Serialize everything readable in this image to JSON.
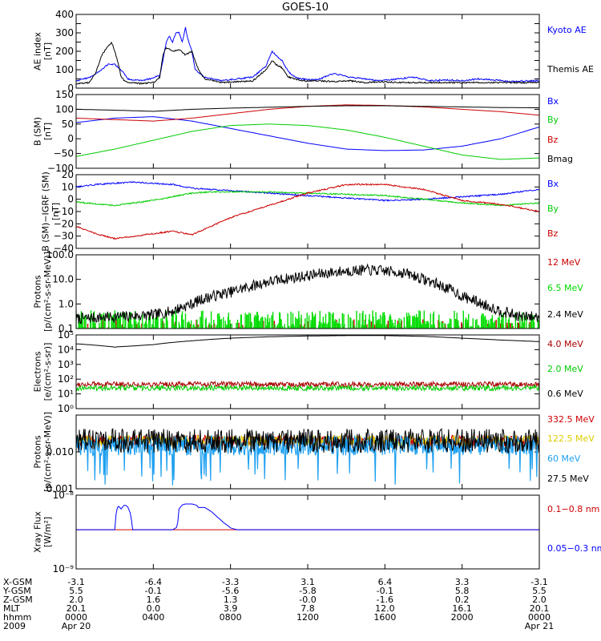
{
  "title": "GOES-10",
  "x_axis": {
    "unit": "hhmm",
    "range": [
      0,
      1440
    ],
    "tick_minutes": [
      0,
      240,
      480,
      720,
      960,
      1200,
      1440
    ],
    "row_labels": [
      "X-GSM",
      "Y-GSM",
      "Z-GSM",
      "MLT",
      "hhmm",
      "2009"
    ],
    "rows": [
      [
        "-3.1",
        "-6.4",
        "-3.3",
        "3.1",
        "6.4",
        "3.3",
        "-3.1"
      ],
      [
        "5.5",
        "-0.1",
        "-5.6",
        "-5.8",
        "-0.1",
        "5.8",
        "5.5"
      ],
      [
        "2.0",
        "1.6",
        "1.3",
        "-0.0",
        "-1.6",
        "0.2",
        "2.0"
      ],
      [
        "20.1",
        "0.0",
        "3.9",
        "7.8",
        "12.0",
        "16.1",
        "20.1"
      ],
      [
        "0000",
        "0400",
        "0800",
        "1200",
        "1600",
        "2000",
        "0000"
      ],
      [
        "Apr 20",
        "",
        "",
        "",
        "",
        "",
        "Apr 21"
      ]
    ]
  },
  "chart_data": [
    {
      "id": "ae",
      "type": "line",
      "ylabel_lines": [
        "AE index",
        "[nT]"
      ],
      "ylim": [
        0,
        400
      ],
      "yticks": [
        0,
        50,
        100,
        150,
        200,
        250,
        300,
        350,
        400
      ],
      "ytick_labels": [
        "0",
        "",
        "100",
        "",
        "200",
        "",
        "300",
        "",
        "400"
      ],
      "series": [
        {
          "name": "Kyoto AE",
          "color": "#0000ff",
          "x": [
            0,
            45,
            80,
            100,
            120,
            150,
            160,
            200,
            240,
            260,
            270,
            280,
            290,
            300,
            310,
            320,
            330,
            340,
            345,
            360,
            370,
            400,
            450,
            470,
            500,
            550,
            590,
            600,
            610,
            620,
            640,
            660,
            680,
            700,
            750,
            800,
            850,
            900,
            950,
            1000,
            1050,
            1100,
            1150,
            1200,
            1250,
            1300,
            1350,
            1400,
            1440
          ],
          "y": [
            40,
            60,
            100,
            130,
            130,
            80,
            50,
            40,
            55,
            70,
            150,
            250,
            280,
            250,
            300,
            300,
            250,
            330,
            280,
            200,
            100,
            60,
            40,
            45,
            50,
            60,
            120,
            160,
            200,
            180,
            150,
            90,
            60,
            50,
            45,
            80,
            60,
            50,
            40,
            50,
            60,
            40,
            45,
            40,
            50,
            45,
            35,
            40,
            40
          ]
        },
        {
          "name": "Themis AE",
          "color": "#000000",
          "x": [
            0,
            40,
            60,
            80,
            100,
            110,
            120,
            130,
            140,
            150,
            160,
            200,
            240,
            260,
            270,
            280,
            300,
            320,
            340,
            360,
            380,
            400,
            450,
            500,
            550,
            590,
            610,
            620,
            640,
            660,
            700,
            750,
            800,
            850,
            900,
            950,
            1000,
            1100,
            1200,
            1300,
            1400,
            1440
          ],
          "y": [
            25,
            30,
            80,
            180,
            230,
            250,
            200,
            140,
            60,
            40,
            30,
            25,
            30,
            60,
            180,
            220,
            200,
            210,
            180,
            200,
            100,
            50,
            30,
            35,
            40,
            100,
            150,
            130,
            110,
            60,
            40,
            40,
            35,
            40,
            30,
            35,
            30,
            30,
            30,
            30,
            30,
            30
          ]
        }
      ]
    },
    {
      "id": "bsm",
      "type": "line",
      "ylabel_lines": [
        "B (SM)",
        "[nT]"
      ],
      "ylim": [
        -100,
        150
      ],
      "yticks": [
        -100,
        -50,
        0,
        50,
        100,
        150
      ],
      "ytick_labels": [
        "−100",
        "−50",
        "0",
        "50",
        "100",
        "150"
      ],
      "series": [
        {
          "name": "Bx",
          "color": "#0000ff",
          "x": [
            0,
            120,
            240,
            360,
            480,
            600,
            720,
            840,
            960,
            1080,
            1200,
            1320,
            1440
          ],
          "y": [
            55,
            70,
            75,
            60,
            35,
            10,
            -15,
            -35,
            -40,
            -38,
            -25,
            0,
            40
          ]
        },
        {
          "name": "By",
          "color": "#00cc00",
          "x": [
            0,
            120,
            240,
            360,
            480,
            600,
            720,
            840,
            960,
            1080,
            1200,
            1320,
            1440
          ],
          "y": [
            -60,
            -35,
            -5,
            25,
            45,
            50,
            45,
            30,
            5,
            -25,
            -55,
            -70,
            -65
          ]
        },
        {
          "name": "Bz",
          "color": "#cc0000",
          "x": [
            0,
            120,
            240,
            360,
            480,
            600,
            720,
            840,
            960,
            1080,
            1200,
            1320,
            1440
          ],
          "y": [
            70,
            65,
            60,
            70,
            85,
            100,
            110,
            115,
            113,
            108,
            100,
            92,
            80
          ]
        },
        {
          "name": "Bmag",
          "color": "#000000",
          "x": [
            0,
            120,
            240,
            360,
            480,
            600,
            720,
            840,
            960,
            1080,
            1200,
            1320,
            1440
          ],
          "y": [
            100,
            97,
            93,
            100,
            104,
            107,
            110,
            112,
            112,
            110,
            108,
            106,
            105
          ]
        }
      ]
    },
    {
      "id": "bigrf",
      "type": "line",
      "ylabel_lines": [
        "B (SM)−IGRF (SM)",
        "[nT]"
      ],
      "ylim": [
        -40,
        20
      ],
      "yticks": [
        -40,
        -30,
        -20,
        -10,
        0,
        10,
        20
      ],
      "ytick_labels": [
        "−40",
        "−30",
        "−20",
        "−10",
        "0",
        "10",
        "20"
      ],
      "series": [
        {
          "name": "Bx",
          "color": "#0000ff",
          "x": [
            0,
            60,
            120,
            180,
            240,
            300,
            360,
            420,
            480,
            600,
            720,
            840,
            960,
            1080,
            1200,
            1320,
            1440
          ],
          "y": [
            10,
            12,
            13,
            14,
            13,
            12,
            9,
            8,
            7,
            5,
            3,
            1,
            -1,
            0,
            2,
            4,
            8
          ]
        },
        {
          "name": "By",
          "color": "#00cc00",
          "x": [
            0,
            60,
            120,
            180,
            240,
            300,
            360,
            420,
            480,
            600,
            720,
            840,
            960,
            1080,
            1200,
            1320,
            1440
          ],
          "y": [
            -2,
            -4,
            -5,
            -3,
            -1,
            2,
            5,
            6,
            6,
            6,
            5,
            4,
            3,
            0,
            -3,
            -5,
            -3
          ]
        },
        {
          "name": "Bz",
          "color": "#cc0000",
          "x": [
            0,
            60,
            120,
            180,
            240,
            300,
            360,
            420,
            480,
            600,
            720,
            840,
            960,
            1080,
            1200,
            1320,
            1440
          ],
          "y": [
            -22,
            -28,
            -32,
            -30,
            -28,
            -26,
            -29,
            -22,
            -15,
            -5,
            5,
            12,
            12,
            8,
            -1,
            -4,
            -10
          ]
        }
      ]
    },
    {
      "id": "protons1",
      "type": "line",
      "yscale": "log",
      "ylabel_lines": [
        "Protons",
        "[p/(cm²-s-sr-MeV)]"
      ],
      "ylim": [
        0.1,
        100
      ],
      "yticks": [
        0.1,
        1,
        10,
        100
      ],
      "ytick_labels": [
        "0.1",
        "1.0",
        "10.0",
        "100.0"
      ],
      "series": [
        {
          "name": "12 MeV",
          "color": "#cc0000",
          "x": [
            0,
            1440
          ],
          "y": [
            0.1,
            0.1
          ]
        },
        {
          "name": "6.5 MeV",
          "color": "#00dd00",
          "x": [
            0,
            1440
          ],
          "y": [
            0.2,
            0.2
          ]
        },
        {
          "name": "2.4 MeV",
          "color": "#000000",
          "x": [
            0,
            120,
            240,
            300,
            360,
            420,
            480,
            540,
            600,
            660,
            720,
            780,
            840,
            900,
            960,
            1020,
            1080,
            1140,
            1200,
            1260,
            1320,
            1380,
            1440
          ],
          "y": [
            0.25,
            0.3,
            0.35,
            0.5,
            1.0,
            2.0,
            3.0,
            5.0,
            8.0,
            11,
            14,
            18,
            22,
            24,
            22,
            18,
            10,
            5.0,
            2.0,
            1.0,
            0.5,
            0.3,
            0.3
          ]
        }
      ]
    },
    {
      "id": "electrons",
      "type": "line",
      "yscale": "log",
      "ylabel_lines": [
        "Electrons",
        "[e/(cm²-s-sr)]"
      ],
      "ylim": [
        1,
        100000
      ],
      "yticks": [
        1,
        10,
        100,
        1000,
        10000,
        100000
      ],
      "ytick_labels": [
        "10⁰",
        "10¹",
        "10²",
        "10³",
        "10⁴",
        "10⁵"
      ],
      "series": [
        {
          "name": "4.0 MeV",
          "color": "#aa0000",
          "x": [
            0,
            1440
          ],
          "y": [
            45,
            45
          ]
        },
        {
          "name": "2.0 MeV",
          "color": "#00cc00",
          "x": [
            0,
            1440
          ],
          "y": [
            25,
            25
          ]
        },
        {
          "name": "0.6 MeV",
          "color": "#000000",
          "x": [
            0,
            60,
            120,
            180,
            240,
            360,
            480,
            600,
            720,
            840,
            960,
            1080,
            1200,
            1320,
            1440
          ],
          "y": [
            25000,
            20000,
            15000,
            18000,
            22000,
            40000,
            60000,
            75000,
            85000,
            90000,
            90000,
            80000,
            60000,
            45000,
            35000
          ]
        }
      ]
    },
    {
      "id": "protons2",
      "type": "line",
      "yscale": "log",
      "ylabel_lines": [
        "Protons",
        "[p/(cm²-s-sr-MeV)]"
      ],
      "ylim": [
        0.001,
        0.1
      ],
      "yticks": [
        0.001,
        0.01
      ],
      "ytick_labels": [
        "0.001",
        "0.010"
      ],
      "series": [
        {
          "name": "332.5 MeV",
          "color": "#cc0000",
          "x": [
            0,
            1440
          ],
          "y": [
            0.02,
            0.02
          ]
        },
        {
          "name": "122.5 MeV",
          "color": "#ddcc00",
          "x": [
            0,
            1440
          ],
          "y": [
            0.02,
            0.02
          ]
        },
        {
          "name": "60 MeV",
          "color": "#1fa0f0",
          "x": [
            0,
            1440
          ],
          "y": [
            0.015,
            0.015
          ]
        },
        {
          "name": "27.5 MeV",
          "color": "#000000",
          "x": [
            0,
            1440
          ],
          "y": [
            0.02,
            0.02
          ]
        }
      ]
    },
    {
      "id": "xray",
      "type": "line",
      "yscale": "log",
      "ylabel_lines": [
        "Xray Flux",
        "[W/m²]"
      ],
      "ylim": [
        1e-09,
        1e-08
      ],
      "yticks": [
        1e-09,
        1e-08
      ],
      "ytick_labels": [
        "10⁻⁹",
        "10⁻⁸"
      ],
      "series": [
        {
          "name": "0.1−0.8 nm",
          "color": "#cc0000",
          "x": [
            0,
            1440
          ],
          "y": [
            3.4e-09,
            3.4e-09
          ]
        },
        {
          "name": "0.05−0.3 nm",
          "color": "#0000ff",
          "x": [
            0,
            120,
            125,
            130,
            140,
            150,
            160,
            170,
            175,
            180,
            190,
            200,
            300,
            315,
            320,
            330,
            340,
            350,
            360,
            375,
            380,
            390,
            400,
            420,
            440,
            460,
            480,
            500,
            520,
            1440
          ],
          "y": [
            3.4e-09,
            3.4e-09,
            6e-09,
            7.2e-09,
            6.5e-09,
            7.4e-09,
            7e-09,
            5.5e-09,
            3.4e-09,
            3.4e-09,
            3.4e-09,
            3.4e-09,
            3.4e-09,
            3.7e-09,
            6.5e-09,
            7.4e-09,
            7.6e-09,
            7.6e-09,
            7.6e-09,
            7.3e-09,
            6.8e-09,
            6.8e-09,
            6.8e-09,
            6e-09,
            5e-09,
            4.2e-09,
            3.6e-09,
            3.4e-09,
            3.4e-09,
            3.4e-09
          ]
        }
      ]
    }
  ]
}
